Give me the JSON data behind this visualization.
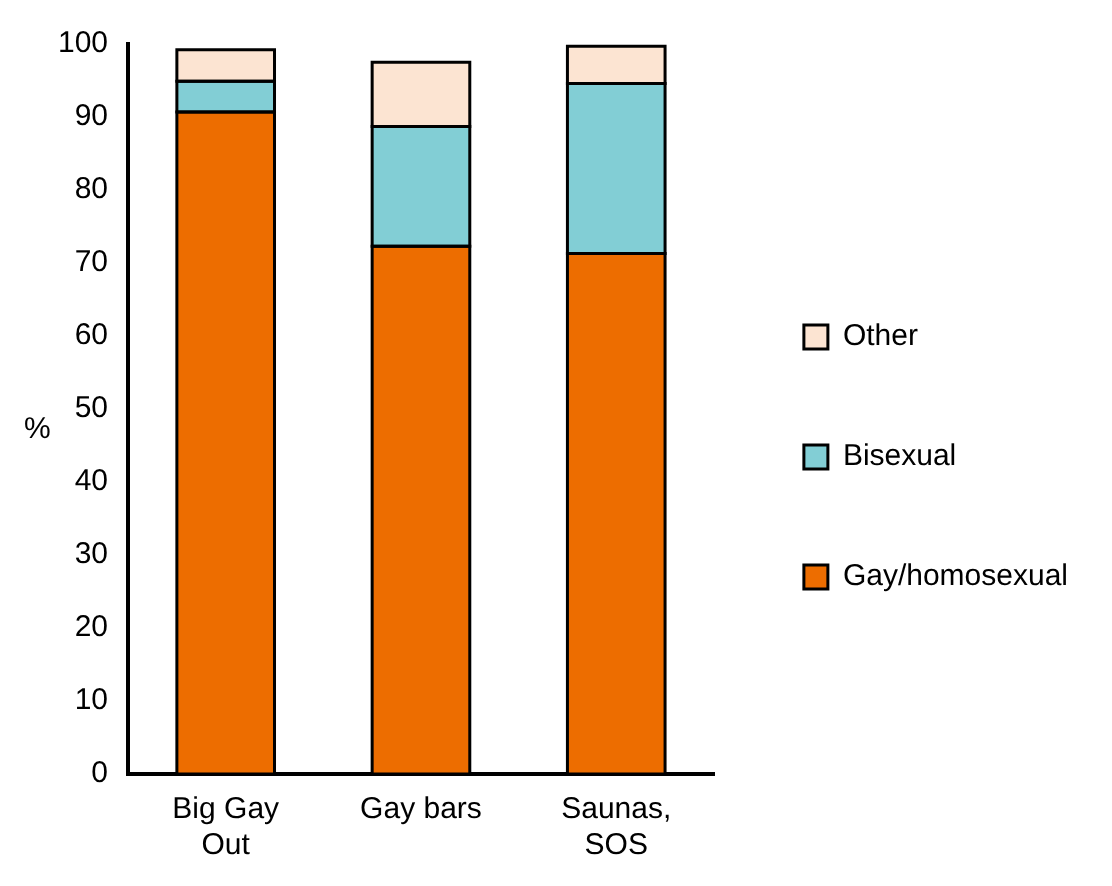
{
  "chart_data": {
    "type": "bar",
    "stacked": true,
    "ylabel": "%",
    "categories": [
      "Big Gay Out",
      "Gay bars",
      "Saunas, SOS"
    ],
    "series": [
      {
        "name": "Gay/homosexual",
        "color": "#ed6d00",
        "values": [
          90.7,
          72.3,
          71.3
        ]
      },
      {
        "name": "Bisexual",
        "color": "#82ced5",
        "values": [
          4.2,
          16.4,
          23.3
        ]
      },
      {
        "name": "Other",
        "color": "#fce4d2",
        "values": [
          4.3,
          8.8,
          5.1
        ]
      }
    ],
    "ylim": [
      0,
      100
    ],
    "yticks": [
      0,
      10,
      20,
      30,
      40,
      50,
      60,
      70,
      80,
      90,
      100
    ],
    "grid": false,
    "legend": "right"
  }
}
